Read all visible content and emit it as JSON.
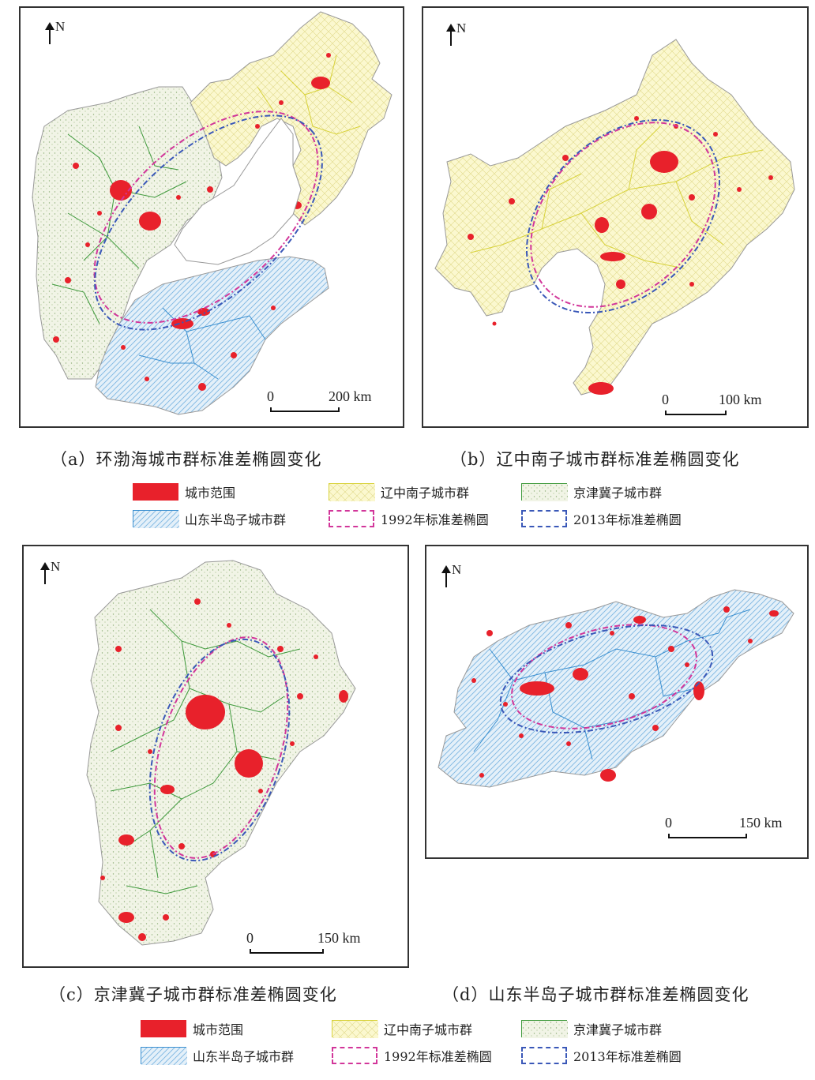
{
  "panels": {
    "a": {
      "north": "N",
      "scale_zero": "0",
      "scale_end": "200 km",
      "caption": "（a）环渤海城市群标准差椭圆变化"
    },
    "b": {
      "north": "N",
      "scale_zero": "0",
      "scale_end": "100 km",
      "caption": "（b）辽中南子城市群标准差椭圆变化"
    },
    "c": {
      "north": "N",
      "scale_zero": "0",
      "scale_end": "150 km",
      "caption": "（c）京津冀子城市群标准差椭圆变化"
    },
    "d": {
      "north": "N",
      "scale_zero": "0",
      "scale_end": "150 km",
      "caption": "（d）山东半岛子城市群标准差椭圆变化"
    }
  },
  "legend": {
    "city_extent": "城市范围",
    "liaozhongnan": "辽中南子城市群",
    "jingjinji": "京津冀子城市群",
    "shandong": "山东半岛子城市群",
    "ellipse_1992": "1992年标准差椭圆",
    "ellipse_2013": "2013年标准差椭圆"
  },
  "colors": {
    "city": "#e8212b",
    "liaozhongnan_fill": "#fbf8cf",
    "liaozhongnan_line": "#d8d23a",
    "jingjinji_fill": "#eef2de",
    "jingjinji_line": "#3f9a3c",
    "shandong_fill": "#dcebf6",
    "shandong_line": "#3a8fd0",
    "ellipse_1992": "#d2369a",
    "ellipse_2013": "#3a58b8"
  }
}
